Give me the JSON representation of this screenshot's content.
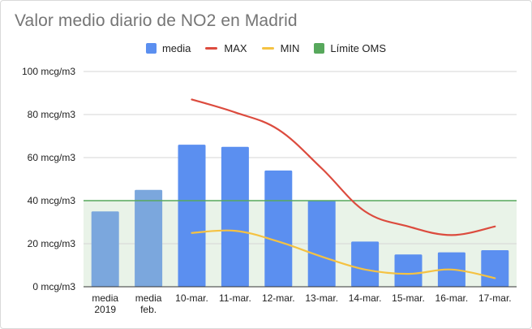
{
  "chart_data": {
    "type": "bar",
    "title": "Valor medio diario de NO2 en Madrid",
    "categories": [
      [
        "media",
        "2019"
      ],
      [
        "media",
        "feb."
      ],
      [
        "10-mar."
      ],
      [
        "11-mar."
      ],
      [
        "12-mar."
      ],
      [
        "13-mar."
      ],
      [
        "14-mar."
      ],
      [
        "15-mar."
      ],
      [
        "16-mar."
      ],
      [
        "17-mar."
      ]
    ],
    "ylim": [
      0,
      100
    ],
    "yticks": [
      0,
      20,
      40,
      60,
      80,
      100
    ],
    "ytick_labels": [
      "0 mcg/m3",
      "20 mcg/m3",
      "40 mcg/m3",
      "60 mcg/m3",
      "80 mcg/m3",
      "100 mcg/m3"
    ],
    "grid": true,
    "legend_position": "top",
    "series": [
      {
        "name": "media",
        "kind": "bar",
        "color": "#5b8ff0",
        "values": [
          35,
          45,
          66,
          65,
          54,
          40,
          21,
          15,
          16,
          17
        ],
        "bar_colors": [
          "#7ba7dd",
          "#7ba7dd",
          "#5b8ff0",
          "#5b8ff0",
          "#5b8ff0",
          "#5b8ff0",
          "#5b8ff0",
          "#5b8ff0",
          "#5b8ff0",
          "#5b8ff0"
        ]
      },
      {
        "name": "MAX",
        "kind": "line",
        "color": "#dc4b3e",
        "values": [
          null,
          null,
          87,
          81,
          73,
          55,
          35,
          28,
          24,
          28
        ]
      },
      {
        "name": "MIN",
        "kind": "line",
        "color": "#f5c242",
        "values": [
          null,
          null,
          25,
          26,
          21,
          14,
          8,
          6,
          8,
          4
        ]
      },
      {
        "name": "Límite OMS",
        "kind": "threshold",
        "color": "#57a85c",
        "fill": "#e9f3e8",
        "value": 40
      }
    ]
  }
}
